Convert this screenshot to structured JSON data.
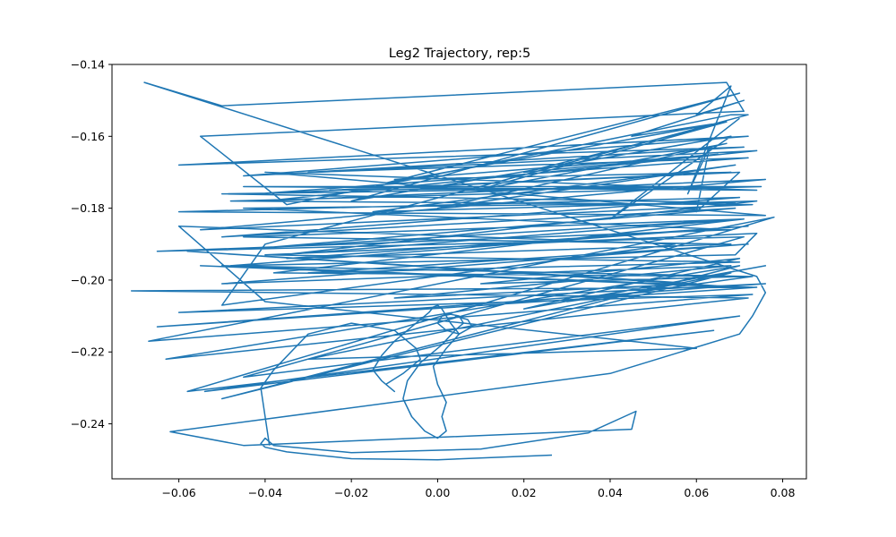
{
  "chart_data": {
    "type": "line",
    "title": "Leg2 Trajectory, rep:5",
    "xlabel": "",
    "ylabel": "",
    "xlim": [
      -0.0755,
      0.0855
    ],
    "ylim": [
      -0.2553,
      -0.14
    ],
    "x_ticks": [
      -0.06,
      -0.04,
      -0.02,
      0.0,
      0.02,
      0.04,
      0.06,
      0.08
    ],
    "x_tick_labels": [
      "−0.06",
      "−0.04",
      "−0.02",
      "0.00",
      "0.02",
      "0.04",
      "0.06",
      "0.08"
    ],
    "y_ticks": [
      -0.14,
      -0.16,
      -0.18,
      -0.2,
      -0.22,
      -0.24
    ],
    "y_tick_labels": [
      "−0.14",
      "−0.16",
      "−0.18",
      "−0.20",
      "−0.22",
      "−0.24"
    ],
    "grid": false,
    "line_color": "#1f77b4",
    "series": [
      {
        "x": [
          0.0265,
          0.0,
          -0.02,
          -0.035,
          -0.04,
          -0.041,
          -0.04,
          -0.038,
          -0.02,
          0.01,
          0.035,
          0.046,
          0.045,
          -0.045,
          -0.062,
          0.04,
          0.07,
          0.073,
          0.076,
          0.074,
          -0.068,
          -0.05,
          0.067,
          0.071,
          -0.055,
          -0.035,
          0.068,
          0.072,
          -0.04,
          -0.05,
          0.055,
          -0.06,
          -0.04,
          0.06,
          -0.03,
          0.068,
          -0.05,
          0.07,
          -0.063,
          0.072,
          -0.071,
          0.074,
          -0.065,
          0.076,
          -0.06,
          0.073,
          -0.067,
          0.078,
          -0.058,
          0.064,
          -0.054,
          0.07,
          -0.045,
          0.071,
          -0.065,
          0.068,
          -0.045,
          0.069,
          -0.05,
          0.07,
          -0.025,
          0.068,
          -0.01,
          0.065,
          0.02,
          0.067,
          0.045,
          0.071,
          0.06,
          0.068,
          0.058,
          0.063,
          0.06,
          0.07,
          -0.042,
          0.072,
          -0.03,
          0.071,
          -0.06,
          0.072,
          -0.045,
          0.074,
          -0.04,
          0.076,
          -0.055,
          0.073,
          -0.048,
          0.075,
          -0.045,
          0.074,
          -0.04,
          0.076,
          -0.06,
          0.07,
          -0.05,
          0.069,
          -0.04,
          0.071,
          -0.045,
          0.068,
          -0.035,
          0.072,
          -0.048,
          0.069,
          0.074,
          -0.04,
          0.07,
          -0.03,
          0.072,
          -0.05,
          0.068,
          -0.01,
          0.06,
          -0.058,
          0.07,
          -0.055,
          0.073,
          -0.05,
          0.072,
          0.01,
          0.07,
          0.02,
          0.076,
          0.03,
          0.073,
          -0.038,
          0.071,
          -0.036,
          0.074,
          -0.015,
          0.069,
          0.0,
          0.067,
          0.009,
          0.067,
          -0.012,
          0.07,
          -0.02,
          0.068,
          0.04,
          0.07
        ],
        "y": [
          -0.2487,
          -0.25,
          -0.2497,
          -0.2478,
          -0.2465,
          -0.2455,
          -0.244,
          -0.246,
          -0.248,
          -0.247,
          -0.2425,
          -0.2365,
          -0.2415,
          -0.246,
          -0.2422,
          -0.226,
          -0.215,
          -0.21,
          -0.2035,
          -0.199,
          -0.145,
          -0.1515,
          -0.145,
          -0.153,
          -0.16,
          -0.179,
          -0.154,
          -0.154,
          -0.19,
          -0.207,
          -0.19,
          -0.185,
          -0.206,
          -0.219,
          -0.222,
          -0.198,
          -0.233,
          -0.196,
          -0.222,
          -0.205,
          -0.203,
          -0.202,
          -0.213,
          -0.201,
          -0.209,
          -0.204,
          -0.217,
          -0.1825,
          -0.231,
          -0.214,
          -0.231,
          -0.21,
          -0.227,
          -0.188,
          -0.192,
          -0.186,
          -0.18,
          -0.1785,
          -0.176,
          -0.174,
          -0.175,
          -0.17,
          -0.172,
          -0.165,
          -0.17,
          -0.156,
          -0.16,
          -0.15,
          -0.154,
          -0.146,
          -0.176,
          -0.163,
          -0.181,
          -0.17,
          -0.176,
          -0.166,
          -0.17,
          -0.163,
          -0.168,
          -0.16,
          -0.171,
          -0.164,
          -0.178,
          -0.172,
          -0.186,
          -0.179,
          -0.178,
          -0.174,
          -0.174,
          -0.175,
          -0.17,
          -0.182,
          -0.181,
          -0.177,
          -0.188,
          -0.18,
          -0.191,
          -0.183,
          -0.188,
          -0.19,
          -0.194,
          -0.185,
          -0.196,
          -0.193,
          -0.187,
          -0.193,
          -0.195,
          -0.198,
          -0.19,
          -0.201,
          -0.196,
          -0.205,
          -0.201,
          -0.192,
          -0.202,
          -0.196,
          -0.202,
          -0.196,
          -0.199,
          -0.201,
          -0.194,
          -0.208,
          -0.196,
          -0.206,
          -0.199,
          -0.198,
          -0.183,
          -0.193,
          -0.178,
          -0.181,
          -0.168,
          -0.18,
          -0.162,
          -0.175,
          -0.156,
          -0.173,
          -0.148,
          -0.178,
          -0.16,
          -0.183,
          -0.155
        ]
      },
      {
        "x": [
          -0.039,
          -0.041,
          -0.038,
          -0.03,
          -0.02,
          -0.01,
          -0.005,
          -0.004,
          -0.008,
          -0.012,
          -0.01,
          -0.013,
          -0.015,
          -0.013,
          -0.01,
          -0.006,
          -0.004,
          -0.002,
          -0.001,
          0.0,
          0.001,
          0.002,
          0.003,
          0.005,
          0.002,
          -0.001,
          0.0,
          0.002,
          0.001,
          0.002,
          0.0,
          -0.003,
          -0.006,
          -0.008,
          -0.007,
          -0.004,
          0.001,
          0.004,
          0.006,
          0.005,
          0.003,
          0.001,
          0.0,
          0.002,
          0.005,
          0.008,
          0.007,
          0.004
        ],
        "y": [
          -0.246,
          -0.23,
          -0.225,
          -0.215,
          -0.212,
          -0.214,
          -0.219,
          -0.222,
          -0.226,
          -0.229,
          -0.231,
          -0.228,
          -0.225,
          -0.221,
          -0.217,
          -0.213,
          -0.211,
          -0.209,
          -0.2075,
          -0.207,
          -0.208,
          -0.21,
          -0.212,
          -0.215,
          -0.219,
          -0.224,
          -0.229,
          -0.234,
          -0.238,
          -0.242,
          -0.244,
          -0.242,
          -0.238,
          -0.233,
          -0.228,
          -0.223,
          -0.218,
          -0.214,
          -0.212,
          -0.21,
          -0.2095,
          -0.21,
          -0.212,
          -0.214,
          -0.215,
          -0.213,
          -0.211,
          -0.21
        ]
      }
    ]
  }
}
